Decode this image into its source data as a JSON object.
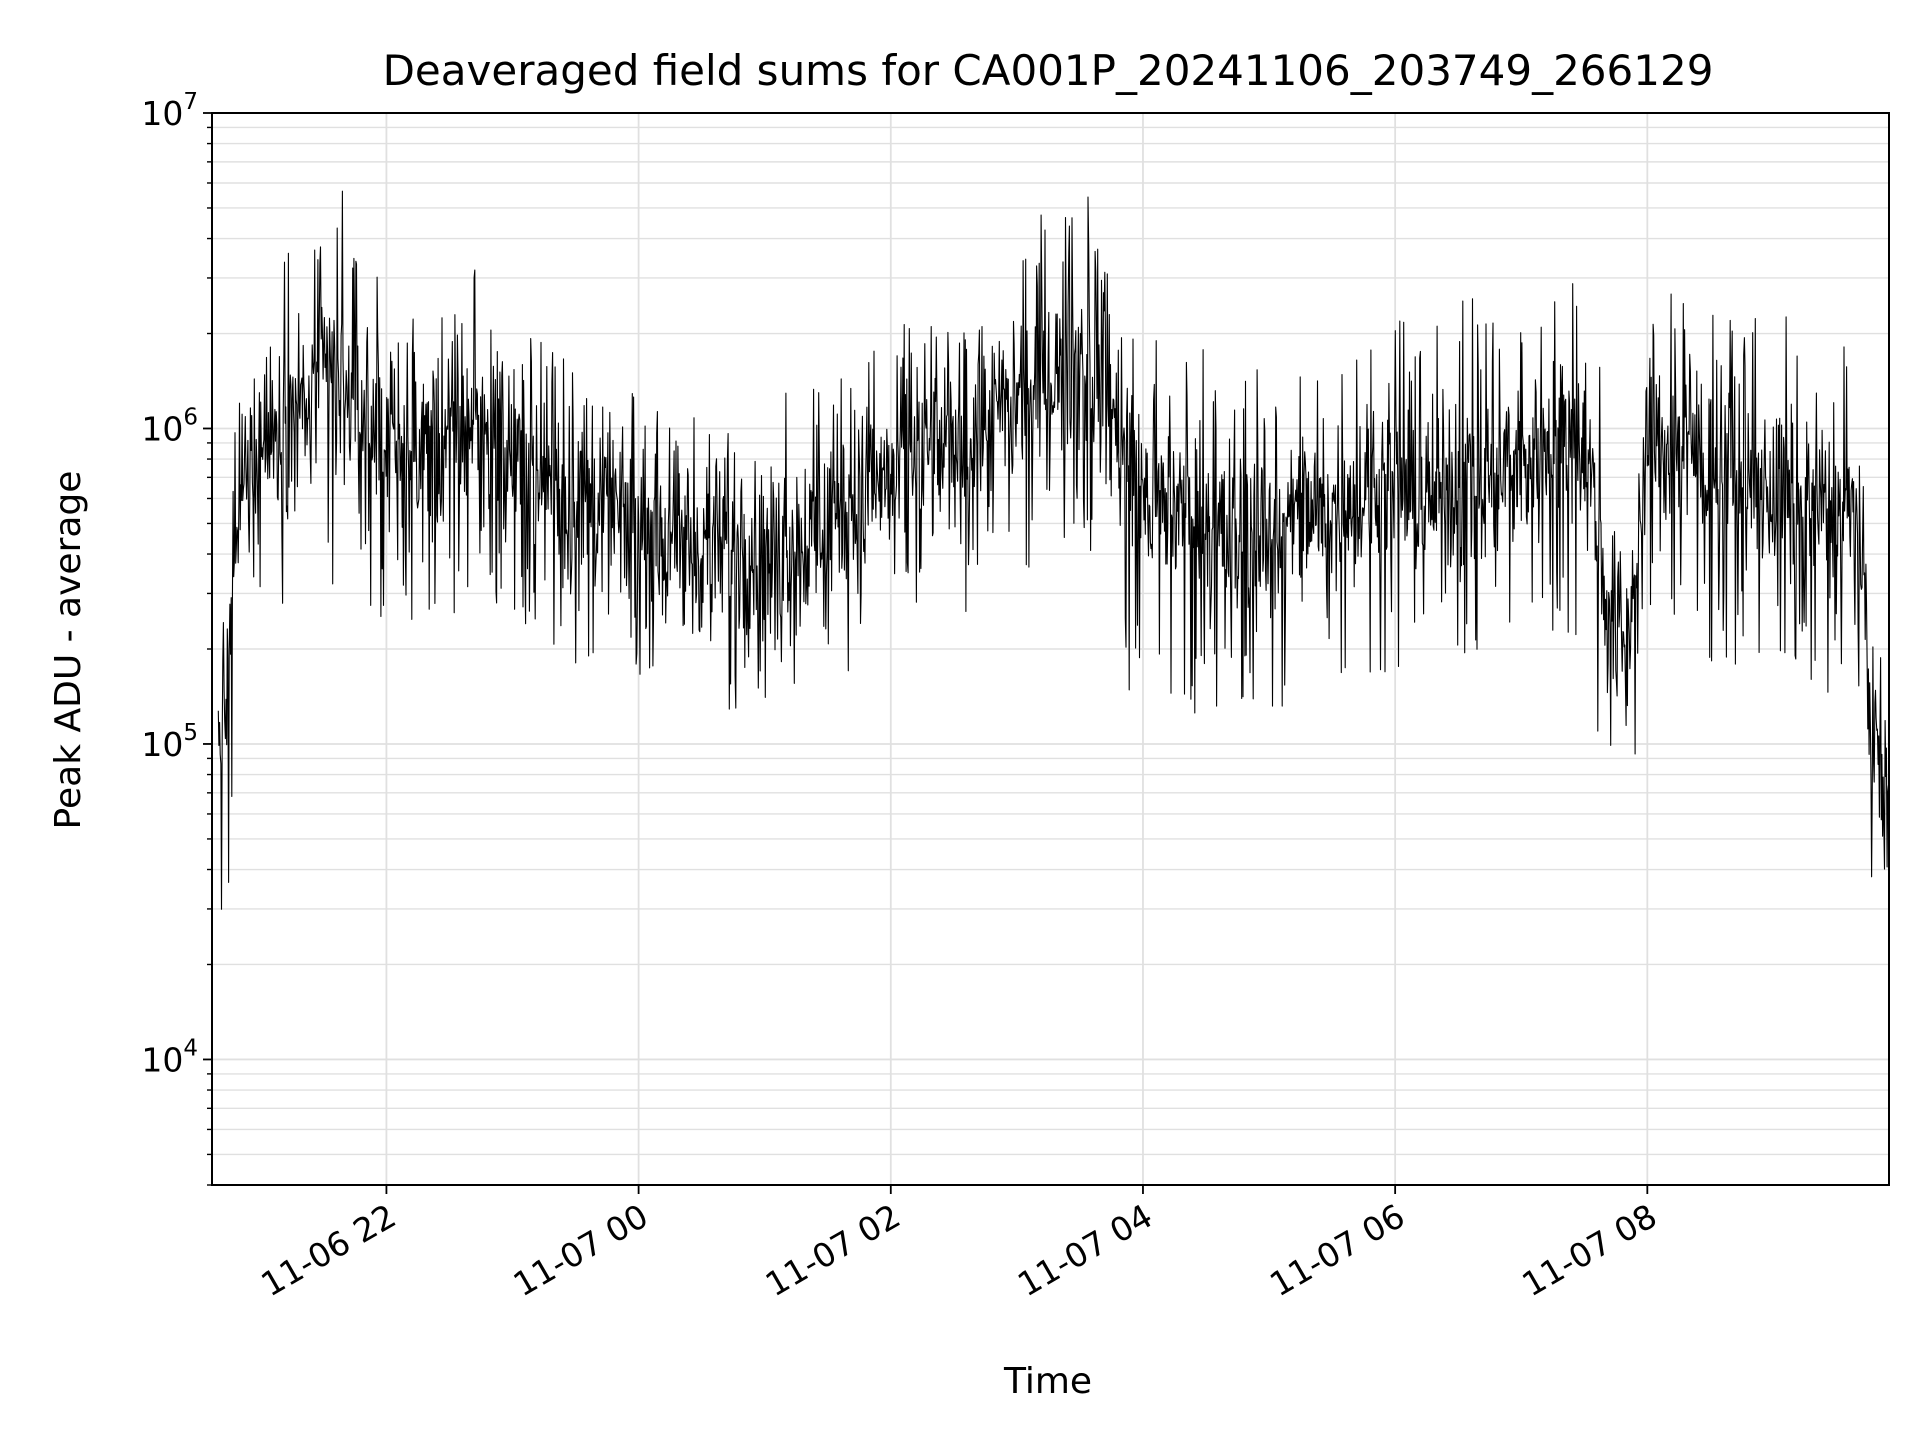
{
  "chart_data": {
    "type": "line",
    "title": "Deaveraged field sums for CA001P_20241106_203749_266129",
    "xlabel": "Time",
    "ylabel": "Peak ADU - average",
    "yscale": "log",
    "ylim": [
      4000,
      10000000
    ],
    "xlim": [
      "2024-11-06 20:37",
      "2024-11-07 09:55"
    ],
    "grid": true,
    "line_color": "#000000",
    "grid_color": "#e0e0e0",
    "x_ticks": [
      {
        "label": "11-06 22",
        "time": "2024-11-06 22:00"
      },
      {
        "label": "11-07 00",
        "time": "2024-11-07 00:00"
      },
      {
        "label": "11-07 02",
        "time": "2024-11-07 02:00"
      },
      {
        "label": "11-07 04",
        "time": "2024-11-07 04:00"
      },
      {
        "label": "11-07 06",
        "time": "2024-11-07 06:00"
      },
      {
        "label": "11-07 08",
        "time": "2024-11-07 08:00"
      }
    ],
    "y_ticks": [
      {
        "base": "10",
        "exp": "4",
        "value": 10000
      },
      {
        "base": "10",
        "exp": "5",
        "value": 100000
      },
      {
        "base": "10",
        "exp": "6",
        "value": 1000000
      },
      {
        "base": "10",
        "exp": "7",
        "value": 10000000
      }
    ],
    "series": [
      {
        "x": [
          "2024-11-06 20:40",
          "2024-11-06 20:45",
          "2024-11-06 20:50",
          "2024-11-06 21:00",
          "2024-11-06 21:10",
          "2024-11-06 21:20",
          "2024-11-06 21:30",
          "2024-11-06 21:40",
          "2024-11-06 21:45",
          "2024-11-06 21:50",
          "2024-11-06 22:00",
          "2024-11-06 22:10",
          "2024-11-06 22:20",
          "2024-11-06 22:30",
          "2024-11-06 22:40",
          "2024-11-06 22:50",
          "2024-11-06 23:00",
          "2024-11-06 23:10",
          "2024-11-06 23:20",
          "2024-11-06 23:30",
          "2024-11-06 23:40",
          "2024-11-06 23:50",
          "2024-11-07 00:00",
          "2024-11-07 00:15",
          "2024-11-07 00:30",
          "2024-11-07 00:45",
          "2024-11-07 01:00",
          "2024-11-07 01:15",
          "2024-11-07 01:30",
          "2024-11-07 01:45",
          "2024-11-07 02:00",
          "2024-11-07 02:15",
          "2024-11-07 02:30",
          "2024-11-07 02:45",
          "2024-11-07 03:00",
          "2024-11-07 03:10",
          "2024-11-07 03:20",
          "2024-11-07 03:30",
          "2024-11-07 03:40",
          "2024-11-07 03:50",
          "2024-11-07 04:00",
          "2024-11-07 04:15",
          "2024-11-07 04:30",
          "2024-11-07 04:45",
          "2024-11-07 05:00",
          "2024-11-07 05:15",
          "2024-11-07 05:30",
          "2024-11-07 05:45",
          "2024-11-07 06:00",
          "2024-11-07 06:15",
          "2024-11-07 06:30",
          "2024-11-07 06:45",
          "2024-11-07 07:00",
          "2024-11-07 07:15",
          "2024-11-07 07:30",
          "2024-11-07 07:40",
          "2024-11-07 07:50",
          "2024-11-07 08:00",
          "2024-11-07 08:10",
          "2024-11-07 08:20",
          "2024-11-07 08:40",
          "2024-11-07 09:00",
          "2024-11-07 09:20",
          "2024-11-07 09:40",
          "2024-11-07 09:48",
          "2024-11-07 09:55"
        ],
        "y": [
          90000,
          150000,
          600000,
          900000,
          1000000,
          1100000,
          1400000,
          1300000,
          1200000,
          1000000,
          900000,
          850000,
          800000,
          900000,
          1100000,
          1000000,
          850000,
          700000,
          650000,
          600000,
          550000,
          500000,
          480000,
          450000,
          420000,
          400000,
          420000,
          450000,
          500000,
          600000,
          700000,
          800000,
          900000,
          1000000,
          1200000,
          1300000,
          1500000,
          1700000,
          1500000,
          900000,
          600000,
          550000,
          500000,
          450000,
          450000,
          500000,
          550000,
          600000,
          650000,
          600000,
          650000,
          700000,
          800000,
          900000,
          950000,
          300000,
          200000,
          800000,
          900000,
          850000,
          700000,
          600000,
          550000,
          500000,
          100000,
          60000
        ],
        "y_low": [
          25000,
          35000,
          200000,
          300000,
          250000,
          250000,
          300000,
          280000,
          280000,
          250000,
          250000,
          250000,
          230000,
          250000,
          280000,
          260000,
          250000,
          220000,
          180000,
          170000,
          160000,
          150000,
          150000,
          140000,
          130000,
          120000,
          130000,
          140000,
          150000,
          180000,
          200000,
          220000,
          250000,
          280000,
          320000,
          350000,
          380000,
          400000,
          300000,
          150000,
          130000,
          130000,
          120000,
          110000,
          120000,
          130000,
          150000,
          160000,
          170000,
          160000,
          170000,
          180000,
          200000,
          220000,
          220000,
          70000,
          55000,
          180000,
          200000,
          190000,
          170000,
          160000,
          140000,
          120000,
          30000,
          30000
        ],
        "y_high": [
          170000,
          400000,
          2500000,
          3500000,
          3500000,
          4000000,
          5000000,
          6500000,
          5000000,
          3500000,
          3000000,
          3000000,
          2800000,
          3000000,
          3500000,
          3000000,
          2500000,
          2000000,
          1800000,
          1600000,
          1500000,
          1400000,
          1300000,
          1300000,
          1200000,
          1200000,
          1300000,
          1400000,
          1500000,
          1800000,
          2200000,
          2500000,
          2500000,
          3000000,
          4500000,
          5000000,
          4500000,
          7500000,
          4000000,
          2500000,
          2000000,
          1800000,
          1800000,
          1600000,
          1500000,
          1600000,
          1800000,
          2000000,
          2500000,
          2200000,
          2500000,
          2800000,
          3200000,
          3200000,
          3000000,
          1800000,
          1500000,
          2500000,
          2800000,
          2600000,
          2500000,
          2500000,
          2200000,
          1800000,
          500000,
          200000
        ]
      }
    ]
  }
}
